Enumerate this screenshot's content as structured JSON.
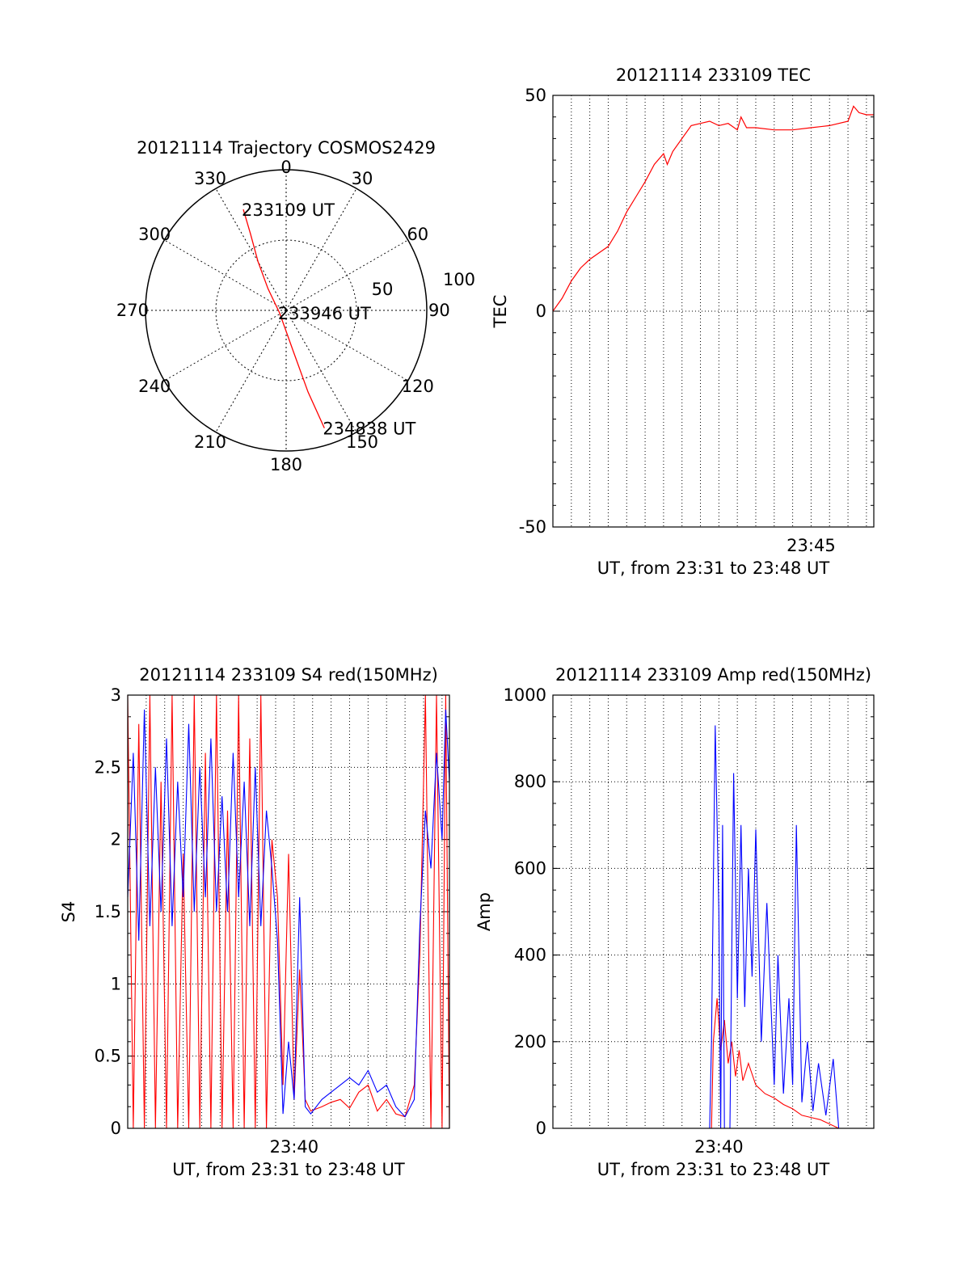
{
  "colors": {
    "red": "#ff0000",
    "blue": "#0000ff",
    "axis": "#000000"
  },
  "chart_data": [
    {
      "id": "trajectory",
      "type": "polar",
      "title": "20121114 Trajectory COSMOS2429",
      "azimuth_labels": [
        "0",
        "30",
        "60",
        "90",
        "120",
        "150",
        "180",
        "210",
        "240",
        "270",
        "300",
        "330"
      ],
      "azimuth_values": [
        0,
        30,
        60,
        90,
        120,
        150,
        180,
        210,
        240,
        270,
        300,
        330
      ],
      "radial_labels": [
        "50",
        "100"
      ],
      "radial_ring_values": [
        50,
        100
      ],
      "track": {
        "color": "red",
        "points": [
          {
            "az": 337,
            "r": 78
          },
          {
            "az": 335,
            "r": 60
          },
          {
            "az": 330,
            "r": 40
          },
          {
            "az": 320,
            "r": 20
          },
          {
            "az": 250,
            "r": 5
          },
          {
            "az": 170,
            "r": 30
          },
          {
            "az": 165,
            "r": 60
          },
          {
            "az": 162,
            "r": 88
          }
        ],
        "labels": [
          {
            "text": "233109 UT",
            "at": 0
          },
          {
            "text": "233946 UT",
            "at": 4
          },
          {
            "text": "234838 UT",
            "at": 7
          }
        ]
      }
    },
    {
      "id": "tec",
      "type": "line",
      "title": "20121114 233109 TEC",
      "xlabel": "UT, from 23:31 to 23:48 UT",
      "ylabel": "TEC",
      "xlim": [
        0,
        17.4
      ],
      "ylim": [
        -50,
        50
      ],
      "yticks": [
        "50",
        "0",
        "-50"
      ],
      "ytick_values": [
        50,
        0,
        -50
      ],
      "xticks": [
        "23:45"
      ],
      "xtick_values": [
        14
      ],
      "grid": true,
      "series": [
        {
          "color": "red",
          "x": [
            0,
            0.5,
            1,
            1.5,
            2,
            2.5,
            3,
            3.5,
            4,
            4.5,
            5,
            5.5,
            6,
            6.2,
            6.5,
            7,
            7.5,
            8,
            8.5,
            9,
            9.5,
            10,
            10.2,
            10.5,
            11,
            12,
            13,
            14,
            15,
            16,
            16.3,
            16.6,
            17,
            17.4
          ],
          "y": [
            0,
            3,
            7,
            10,
            12,
            13.5,
            15,
            18.5,
            23,
            26.5,
            30,
            34,
            36.5,
            34,
            37,
            40,
            43,
            43.5,
            44,
            43,
            43.5,
            42,
            45,
            42.5,
            42.5,
            42,
            42,
            42.5,
            43,
            44,
            47.5,
            46,
            45.5,
            45.5
          ]
        }
      ]
    },
    {
      "id": "s4",
      "type": "line",
      "title": "20121114 233109 S4 red(150MHz)",
      "xlabel": "UT, from 23:31 to 23:48 UT",
      "ylabel": "S4",
      "xlim": [
        0,
        17.4
      ],
      "ylim": [
        0,
        3
      ],
      "yticks": [
        "0",
        "0.5",
        "1",
        "1.5",
        "2",
        "2.5",
        "3"
      ],
      "ytick_values": [
        0,
        0.5,
        1,
        1.5,
        2,
        2.5,
        3
      ],
      "xticks": [
        "23:40"
      ],
      "xtick_values": [
        9
      ],
      "grid": true,
      "series": [
        {
          "color": "red",
          "x": [
            0,
            0.3,
            0.6,
            0.9,
            1.2,
            1.5,
            1.8,
            2.1,
            2.4,
            2.7,
            3.0,
            3.3,
            3.6,
            3.9,
            4.2,
            4.5,
            4.8,
            5.1,
            5.4,
            5.7,
            6.0,
            6.3,
            6.6,
            6.9,
            7.2,
            7.5,
            7.8,
            8.1,
            8.4,
            8.7,
            9.0,
            9.3,
            9.6,
            9.9,
            10.5,
            11,
            11.5,
            12,
            12.5,
            13,
            13.5,
            14,
            14.5,
            15,
            15.5,
            15.8,
            16.1,
            16.4,
            16.7,
            17.0,
            17.2,
            17.4
          ],
          "y": [
            3,
            0,
            2.8,
            0,
            3,
            0,
            2.4,
            0,
            3,
            0,
            1.9,
            0,
            3,
            0,
            2.6,
            0,
            3,
            0,
            2.2,
            0,
            3,
            0,
            2.7,
            0,
            3,
            0,
            2.0,
            1.6,
            0.3,
            1.9,
            0.2,
            1.1,
            0.2,
            0.12,
            0.15,
            0.18,
            0.2,
            0.14,
            0.25,
            0.3,
            0.12,
            0.2,
            0.1,
            0.08,
            0.3,
            1.2,
            3,
            0,
            3,
            0,
            3,
            0
          ]
        },
        {
          "color": "blue",
          "x": [
            0,
            0.3,
            0.6,
            0.9,
            1.2,
            1.5,
            1.8,
            2.1,
            2.4,
            2.7,
            3.0,
            3.3,
            3.6,
            3.9,
            4.2,
            4.5,
            4.8,
            5.1,
            5.4,
            5.7,
            6.0,
            6.3,
            6.6,
            6.9,
            7.2,
            7.5,
            7.8,
            8.1,
            8.4,
            8.7,
            9.0,
            9.3,
            9.6,
            9.9,
            10.5,
            11,
            11.5,
            12,
            12.5,
            13,
            13.5,
            14,
            14.5,
            15,
            15.5,
            15.8,
            16.1,
            16.4,
            16.7,
            17.0,
            17.2,
            17.4
          ],
          "y": [
            1.6,
            2.6,
            1.3,
            2.9,
            1.4,
            2.5,
            1.5,
            2.7,
            1.4,
            2.4,
            1.6,
            2.8,
            1.5,
            2.5,
            1.6,
            2.7,
            1.5,
            2.3,
            1.5,
            2.6,
            1.6,
            2.4,
            1.4,
            2.5,
            1.4,
            2.2,
            1.8,
            1.3,
            0.1,
            0.6,
            0.2,
            1.6,
            0.15,
            0.1,
            0.2,
            0.25,
            0.3,
            0.35,
            0.3,
            0.4,
            0.25,
            0.3,
            0.15,
            0.08,
            0.2,
            1.4,
            2.2,
            1.8,
            2.6,
            2.0,
            2.9,
            2.4
          ]
        }
      ]
    },
    {
      "id": "amp",
      "type": "line",
      "title": "20121114 233109 Amp red(150MHz)",
      "xlabel": "UT, from 23:31 to 23:48 UT",
      "ylabel": "Amp",
      "xlim": [
        0,
        17.4
      ],
      "ylim": [
        0,
        1000
      ],
      "yticks": [
        "0",
        "200",
        "400",
        "600",
        "800",
        "1000"
      ],
      "ytick_values": [
        0,
        200,
        400,
        600,
        800,
        1000
      ],
      "xticks": [
        "23:40"
      ],
      "xtick_values": [
        9
      ],
      "grid": true,
      "series": [
        {
          "color": "red",
          "x": [
            0,
            8.6,
            8.7,
            8.9,
            9.1,
            9.3,
            9.5,
            9.7,
            9.9,
            10.1,
            10.3,
            10.6,
            11,
            11.5,
            12,
            12.5,
            13,
            13.5,
            14,
            14.5,
            15,
            15.5,
            17.4
          ],
          "y": [
            0,
            0,
            200,
            300,
            180,
            250,
            150,
            200,
            120,
            180,
            110,
            150,
            100,
            80,
            70,
            55,
            45,
            30,
            25,
            20,
            10,
            0,
            0
          ]
        },
        {
          "color": "blue",
          "x": [
            0,
            8.5,
            8.6,
            8.8,
            9.0,
            9.1,
            9.2,
            9.3,
            9.6,
            9.8,
            10.0,
            10.2,
            10.4,
            10.6,
            10.8,
            11.0,
            11.3,
            11.6,
            12.0,
            12.2,
            12.5,
            12.8,
            13.0,
            13.2,
            13.5,
            13.8,
            14.1,
            14.4,
            14.8,
            15.2,
            15.5,
            17.4
          ],
          "y": [
            0,
            0,
            200,
            930,
            500,
            0,
            700,
            0,
            0,
            820,
            300,
            700,
            280,
            600,
            350,
            690,
            200,
            520,
            100,
            400,
            80,
            300,
            100,
            700,
            60,
            200,
            40,
            150,
            30,
            160,
            0,
            0
          ]
        }
      ]
    }
  ]
}
